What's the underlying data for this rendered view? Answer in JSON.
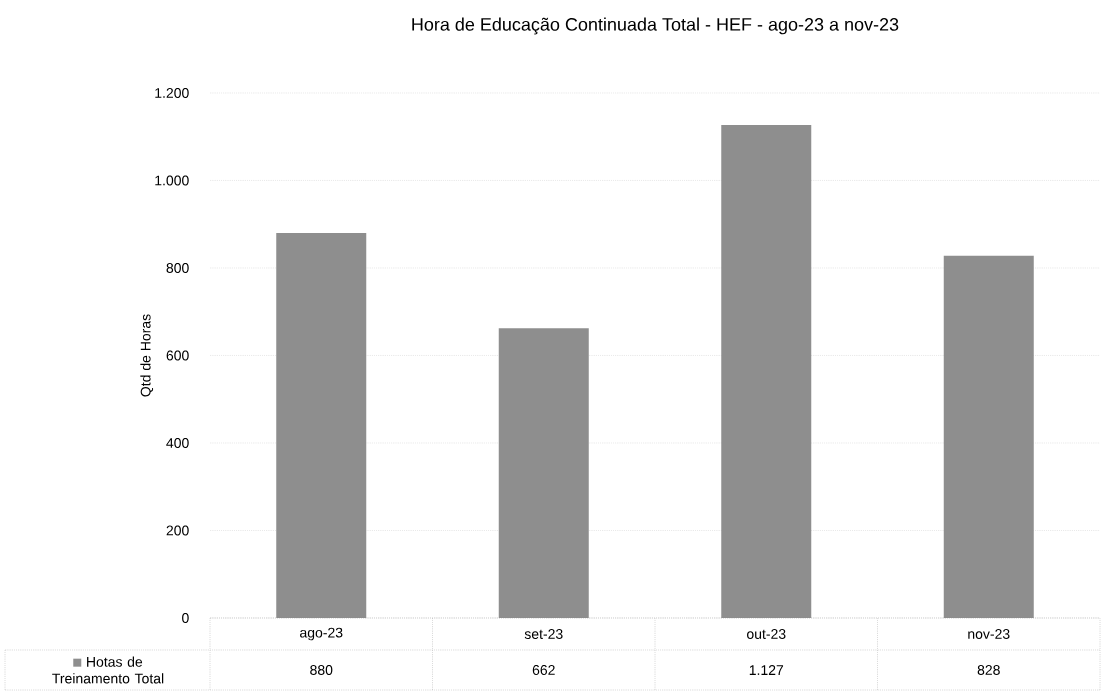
{
  "chart_data": {
    "type": "bar",
    "title": "Hora de Educação Continuada Total - HEF - ago-23 a nov-23",
    "ylabel": "Qtd de Horas",
    "categories": [
      "ago-23",
      "set-23",
      "out-23",
      "nov-23"
    ],
    "series": [
      {
        "name": "Hotas de Treinamento Total",
        "color": "#8e8e8e",
        "values": [
          880,
          662,
          1127,
          828
        ],
        "value_labels": [
          "880",
          "662",
          "1.127",
          "828"
        ]
      }
    ],
    "ylim": [
      0,
      1200
    ],
    "yticks": [
      0,
      200,
      400,
      600,
      800,
      {
        "value": 1000,
        "label": "1.000"
      },
      {
        "value": 1200,
        "label": "1.200"
      }
    ],
    "grid": "y",
    "legend": "bottom"
  }
}
